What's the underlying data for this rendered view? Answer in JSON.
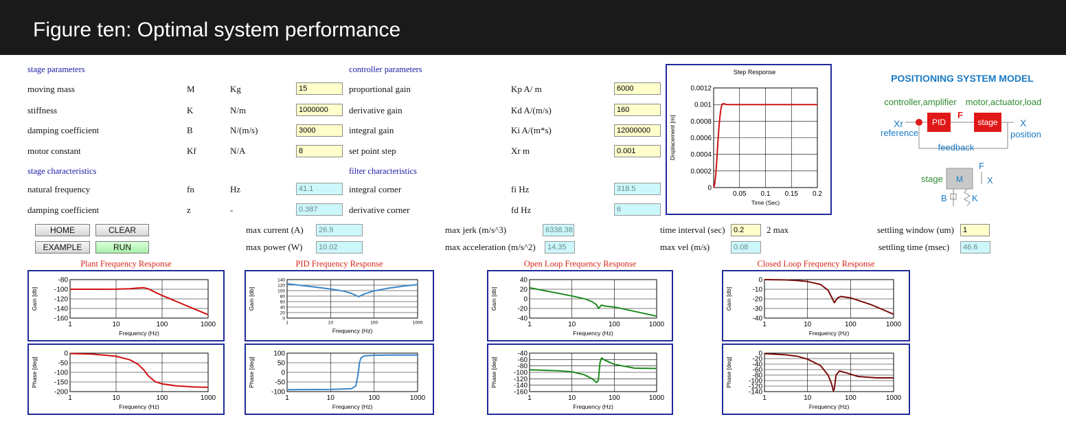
{
  "banner": {
    "title": "Figure ten: Optimal system performance"
  },
  "stage": {
    "heading": "stage parameters",
    "rows": [
      {
        "label": "moving mass",
        "symbol": "M",
        "unit": "Kg",
        "value": "15"
      },
      {
        "label": "stiffness",
        "symbol": "K",
        "unit": "N/m",
        "value": "1000000"
      },
      {
        "label": "damping coefficient",
        "symbol": "B",
        "unit": "N/(m/s)",
        "value": "3000"
      },
      {
        "label": "motor constant",
        "symbol": "Kf",
        "unit": "N/A",
        "value": "8"
      }
    ]
  },
  "stage_char": {
    "heading": "stage characteristics",
    "rows": [
      {
        "label": "natural frequency",
        "symbol": "fn",
        "unit": "Hz",
        "value": "41.1"
      },
      {
        "label": "damping coefficient",
        "symbol": "z",
        "unit": "-",
        "value": "0.387"
      }
    ]
  },
  "controller": {
    "heading": "controller parameters",
    "rows": [
      {
        "label": "proportional gain",
        "unit": "Kp A/ m",
        "value": "6000"
      },
      {
        "label": "derivative gain",
        "unit": "Kd A/(m/s)",
        "value": "160"
      },
      {
        "label": "integral gain",
        "unit": "Ki  A/(m*s)",
        "value": "12000000"
      },
      {
        "label": "set point step",
        "unit": "Xr  m",
        "value": "0.001"
      }
    ]
  },
  "filter": {
    "heading": "filter characteristics",
    "rows": [
      {
        "label": "integral corner",
        "unit": "fi   Hz",
        "value": "318.5"
      },
      {
        "label": "derivative corner",
        "unit": "fd   Hz",
        "value": "6"
      }
    ]
  },
  "buttons": {
    "home": "HOME",
    "clear": "CLEAR",
    "example": "EXAMPLE",
    "run": "RUN"
  },
  "results": {
    "max_current": {
      "label": "max current (A)",
      "value": "26.9"
    },
    "max_power": {
      "label": "max power (W)",
      "value": "10.02"
    },
    "max_jerk": {
      "label": "max jerk (m/s^3)",
      "value": "6338.38"
    },
    "max_accel": {
      "label": "max acceleration (m/s^2)",
      "value": "14.35"
    },
    "time_interval": {
      "label": "time interval (sec)",
      "value": "0.2",
      "suffix": "2 max"
    },
    "max_vel": {
      "label": "max vel (m/s)",
      "value": "0.08"
    },
    "settling_window": {
      "label": "settling window (um)",
      "value": "1"
    },
    "settling_time": {
      "label": "settling time (msec)",
      "value": "46.6"
    }
  },
  "model": {
    "title": "POSITIONING SYSTEM MODEL",
    "controller_label": "controller,amplifier",
    "motor_label": "motor,actuator,load",
    "xr": "Xr",
    "reference": "reference",
    "f": "F",
    "pid": "PID",
    "stage": "stage",
    "x": "X",
    "position": "position",
    "feedback": "feedback",
    "stage_label": "stage",
    "m": "M",
    "f2": "F",
    "x2": "X",
    "b": "B",
    "k": "K",
    "colors": {
      "title": "#1a7ac4",
      "green": "#2e8b2e",
      "block": "#e01818"
    }
  },
  "chart_data": [
    {
      "id": "step",
      "type": "line",
      "title": "Step Response",
      "xlabel": "Time (Sec)",
      "ylabel": "Displacement [m]",
      "xlim": [
        0,
        0.2
      ],
      "ylim": [
        0,
        0.0012
      ],
      "xticks": [
        "0.05",
        "0.1",
        "0.15",
        "0.2"
      ],
      "yticks": [
        "0",
        "0.0002",
        "0.0004",
        "0.0006",
        "0.0008",
        "0.001",
        "0.0012"
      ],
      "series": [
        {
          "color": "#d01010",
          "x": [
            0,
            0.002,
            0.004,
            0.006,
            0.008,
            0.01,
            0.012,
            0.014,
            0.016,
            0.018,
            0.02,
            0.025,
            0.03,
            0.04,
            0.05,
            0.1,
            0.15,
            0.2
          ],
          "y": [
            0,
            4e-05,
            0.00015,
            0.00032,
            0.00052,
            0.0007,
            0.00085,
            0.00095,
            0.001,
            0.00101,
            0.00101,
            0.001,
            0.001,
            0.001,
            0.001,
            0.001,
            0.001,
            0.001
          ]
        }
      ]
    },
    {
      "id": "plant_gain",
      "type": "line",
      "title": "Plant Frequency Response",
      "xlabel": "Frequency (Hz)",
      "ylabel": "Gain [db]",
      "xscale": "log",
      "xlim": [
        1,
        1000
      ],
      "ylim": [
        -160,
        -80
      ],
      "xticks": [
        "1",
        "10",
        "100",
        "1000"
      ],
      "yticks": [
        "-80",
        "-100",
        "-120",
        "-140",
        "-160"
      ],
      "series": [
        {
          "color": "#d01010",
          "x": [
            1,
            3,
            10,
            20,
            30,
            40,
            50,
            70,
            100,
            200,
            500,
            1000
          ],
          "y": [
            -100,
            -100,
            -99.8,
            -99,
            -97.5,
            -96.8,
            -99,
            -106,
            -113,
            -125,
            -141,
            -153
          ]
        }
      ]
    },
    {
      "id": "plant_phase",
      "type": "line",
      "xlabel": "Frequency (Hz)",
      "ylabel": "Phase [deg]",
      "xscale": "log",
      "xlim": [
        1,
        1000
      ],
      "ylim": [
        -200,
        0
      ],
      "xticks": [
        "1",
        "10",
        "100",
        "1000"
      ],
      "yticks": [
        "0",
        "-50",
        "-100",
        "-150",
        "-200"
      ],
      "series": [
        {
          "color": "#d01010",
          "x": [
            1,
            3,
            10,
            20,
            30,
            41,
            50,
            70,
            100,
            200,
            500,
            1000
          ],
          "y": [
            -2,
            -5,
            -16,
            -35,
            -58,
            -90,
            -118,
            -148,
            -160,
            -170,
            -176,
            -178
          ]
        }
      ]
    },
    {
      "id": "pid_gain",
      "type": "line",
      "title": "PID Frequency Response",
      "xlabel": "Frequency (Hz)",
      "ylabel": "Gain [db]",
      "xscale": "log",
      "xlim": [
        1,
        1000
      ],
      "ylim": [
        0,
        140
      ],
      "xticks": [
        "1",
        "10",
        "100",
        "1000"
      ],
      "yticks": [
        "140",
        "120",
        "100",
        "80",
        "60",
        "40",
        "20",
        "0"
      ],
      "series": [
        {
          "color": "#3a86c8",
          "x": [
            1,
            3,
            10,
            20,
            30,
            44,
            60,
            100,
            200,
            500,
            1000
          ],
          "y": [
            125,
            116,
            106,
            98,
            90,
            78,
            88,
            99,
            108,
            117,
            122
          ]
        }
      ]
    },
    {
      "id": "pid_phase",
      "type": "line",
      "xlabel": "Frequency (Hz)",
      "ylabel": "Phase [deg]",
      "xscale": "log",
      "xlim": [
        1,
        1000
      ],
      "ylim": [
        -100,
        100
      ],
      "xticks": [
        "1",
        "10",
        "100",
        "1000"
      ],
      "yticks": [
        "100",
        "50",
        "0",
        "-50",
        "-100"
      ],
      "series": [
        {
          "color": "#3a86c8",
          "x": [
            1,
            10,
            30,
            38,
            42,
            44,
            46,
            50,
            60,
            100,
            300,
            1000
          ],
          "y": [
            -90,
            -89,
            -85,
            -70,
            -20,
            10,
            50,
            75,
            86,
            89,
            90,
            90
          ]
        }
      ]
    },
    {
      "id": "ol_gain",
      "type": "line",
      "title": "Open Loop Frequency Response",
      "xlabel": "Frequency (Hz)",
      "ylabel": "Gain [db]",
      "xscale": "log",
      "xlim": [
        1,
        1000
      ],
      "ylim": [
        -40,
        40
      ],
      "xticks": [
        "1",
        "10",
        "100",
        "1000"
      ],
      "yticks": [
        "40",
        "20",
        "0",
        "-20",
        "-40"
      ],
      "series": [
        {
          "color": "#1d8a1d",
          "x": [
            1,
            3,
            10,
            20,
            30,
            38,
            42,
            50,
            60,
            100,
            300,
            1000
          ],
          "y": [
            23,
            15,
            6,
            0,
            -6,
            -12,
            -20,
            -13,
            -15,
            -17,
            -26,
            -36
          ]
        }
      ]
    },
    {
      "id": "ol_phase",
      "type": "line",
      "xlabel": "Frequency (Hz)",
      "ylabel": "Phase [deg]",
      "xscale": "log",
      "xlim": [
        1,
        1000
      ],
      "ylim": [
        -160,
        -40
      ],
      "xticks": [
        "1",
        "10",
        "100",
        "1000"
      ],
      "yticks": [
        "-40",
        "-60",
        "-80",
        "-100",
        "-120",
        "-140",
        "-160"
      ],
      "series": [
        {
          "color": "#1d8a1d",
          "x": [
            1,
            5,
            10,
            20,
            30,
            38,
            42,
            46,
            50,
            60,
            100,
            300,
            1000
          ],
          "y": [
            -92,
            -95,
            -98,
            -108,
            -120,
            -132,
            -125,
            -70,
            -55,
            -62,
            -75,
            -87,
            -88
          ]
        }
      ]
    },
    {
      "id": "cl_gain",
      "type": "line",
      "title": "Closed Loop Frequency Response",
      "xlabel": "Frequency (Hz)",
      "ylabel": "Gain [db]",
      "xscale": "log",
      "xlim": [
        1,
        1000
      ],
      "ylim": [
        -40,
        0
      ],
      "xticks": [
        "1",
        "10",
        "100",
        "1000"
      ],
      "yticks": [
        "0",
        "-10",
        "-20",
        "-30",
        "-40"
      ],
      "series": [
        {
          "color": "#7a0a0a",
          "x": [
            1,
            3,
            6,
            10,
            20,
            30,
            38,
            42,
            50,
            60,
            100,
            300,
            1000
          ],
          "y": [
            0,
            -0.3,
            -1,
            -2,
            -5,
            -11,
            -20,
            -24,
            -19,
            -17.5,
            -19,
            -26,
            -36
          ]
        }
      ]
    },
    {
      "id": "cl_phase",
      "type": "line",
      "xlabel": "Frequency (Hz)",
      "ylabel": "Phase [deg]",
      "xscale": "log",
      "xlim": [
        1,
        1000
      ],
      "ylim": [
        -140,
        0
      ],
      "xticks": [
        "1",
        "10",
        "100",
        "1000"
      ],
      "yticks": [
        "0",
        "-20",
        "-40",
        "-60",
        "-80",
        "-100",
        "-120",
        "-140"
      ],
      "series": [
        {
          "color": "#7a0a0a",
          "x": [
            1,
            3,
            6,
            10,
            20,
            30,
            36,
            40,
            42,
            46,
            55,
            80,
            150,
            400,
            1000
          ],
          "y": [
            -2,
            -6,
            -12,
            -22,
            -45,
            -80,
            -110,
            -138,
            -130,
            -80,
            -65,
            -72,
            -85,
            -90,
            -90
          ]
        }
      ]
    }
  ]
}
